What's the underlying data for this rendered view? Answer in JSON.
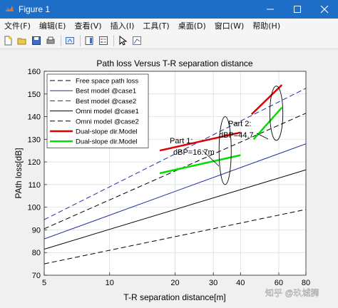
{
  "window": {
    "title": "Figure 1",
    "minimize_icon": "minimize-icon",
    "maximize_icon": "maximize-icon",
    "close_icon": "close-icon"
  },
  "menubar": {
    "items": [
      {
        "label": "文件(F)"
      },
      {
        "label": "编辑(E)"
      },
      {
        "label": "查看(V)"
      },
      {
        "label": "插入(I)"
      },
      {
        "label": "工具(T)"
      },
      {
        "label": "桌面(D)"
      },
      {
        "label": "窗口(W)"
      },
      {
        "label": "帮助(H)"
      }
    ]
  },
  "toolbar": {
    "icons": [
      "new-figure-icon",
      "open-file-icon",
      "save-icon",
      "print-icon",
      "link-icon",
      "colorbar-icon",
      "legend-icon",
      "pointer-icon",
      "data-cursor-icon"
    ]
  },
  "watermark": "知乎 @玖城狮",
  "chart_data": {
    "type": "line",
    "title": "Path loss Versus T-R separation distance",
    "xlabel": "T-R separation distance[m]",
    "ylabel": "PAth loss[dB]",
    "xscale": "log",
    "xlim": [
      5,
      80
    ],
    "ylim": [
      70,
      160
    ],
    "xticks": [
      5,
      10,
      20,
      30,
      40,
      60,
      80
    ],
    "yticks": [
      70,
      80,
      90,
      100,
      110,
      120,
      130,
      140,
      150,
      160
    ],
    "grid": true,
    "legend_position": "top-left",
    "series": [
      {
        "name": "Free space path loss",
        "color": "#000000",
        "style": "dashed",
        "width": 1,
        "x": [
          5,
          80
        ],
        "y": [
          75,
          99
        ]
      },
      {
        "name": "Best model @case1",
        "color": "#1f2f9a",
        "style": "solid",
        "width": 1,
        "x": [
          5,
          80
        ],
        "y": [
          86,
          128
        ]
      },
      {
        "name": "Best model @case2",
        "color": "#1f2f9a",
        "style": "dashed",
        "width": 1,
        "x": [
          5,
          80
        ],
        "y": [
          94.5,
          152.5
        ]
      },
      {
        "name": "Omni model @case1",
        "color": "#000000",
        "style": "solid",
        "width": 1,
        "x": [
          5,
          80
        ],
        "y": [
          81.5,
          116.5
        ]
      },
      {
        "name": "Omni model @case2",
        "color": "#000000",
        "style": "dashed",
        "width": 1,
        "x": [
          5,
          80
        ],
        "y": [
          90.5,
          141.5
        ]
      },
      {
        "name": "Dual-slope dir.Model",
        "color": "#dd0000",
        "style": "solid",
        "width": 2.5,
        "segments": [
          {
            "x": [
              17,
              40
            ],
            "y": [
              125,
              133
            ]
          },
          {
            "x": [
              45,
              62
            ],
            "y": [
              141,
              154
            ]
          }
        ]
      },
      {
        "name": "Dual-slope dir.Model",
        "color": "#00dd00",
        "style": "solid",
        "width": 2.5,
        "segments": [
          {
            "x": [
              17,
              40
            ],
            "y": [
              115,
              123
            ]
          },
          {
            "x": [
              46,
              62
            ],
            "y": [
              130,
              144
            ]
          }
        ]
      }
    ],
    "annotations": [
      {
        "lines": [
          "Part 1:",
          "dBP=16.7m"
        ]
      },
      {
        "lines": [
          "Part 2:",
          "dBP=44.7"
        ]
      }
    ],
    "ellipses": [
      {
        "cx": 34,
        "cy": 125,
        "rx_decades": 0.028,
        "ry": 15
      },
      {
        "cx": 58.5,
        "cy": 141.5,
        "rx_decades": 0.03,
        "ry": 12
      }
    ]
  }
}
